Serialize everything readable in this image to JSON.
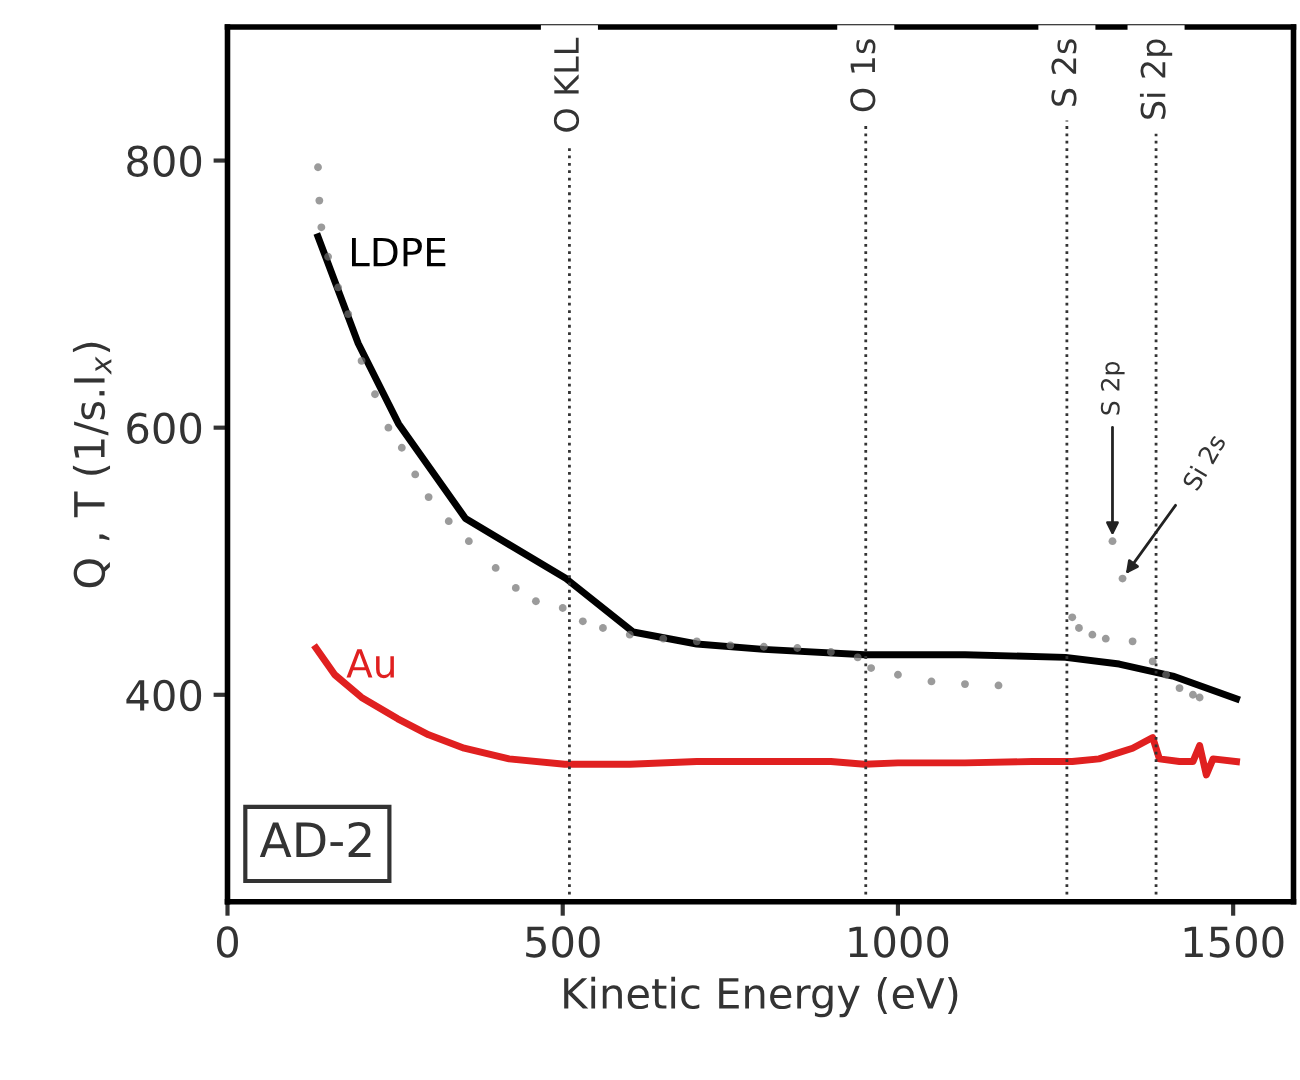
{
  "chart_data": {
    "type": "line",
    "xlabel": "Kinetic Energy (eV)",
    "ylabel": "Q , T (1/s.I$_{x}$)",
    "xlim": [
      0,
      1590
    ],
    "ylim": [
      245,
      900
    ],
    "xticks": [
      0,
      500,
      1000,
      1500
    ],
    "yticks": [
      400,
      600,
      800
    ],
    "grid": false,
    "legend": false,
    "series": [
      {
        "type": "scatter",
        "color": "#707070",
        "marker": "circle",
        "x": [
          135,
          137,
          140,
          150,
          165,
          180,
          200,
          220,
          240,
          260,
          280,
          300,
          330,
          360,
          400,
          430,
          460,
          500,
          530,
          560,
          600,
          650,
          700,
          750,
          800,
          850,
          900,
          940,
          960,
          1000,
          1050,
          1100,
          1150,
          1260,
          1270,
          1290,
          1310,
          1320,
          1335,
          1350,
          1380,
          1400,
          1420,
          1440,
          1450
        ],
        "values": [
          795,
          770,
          750,
          728,
          705,
          685,
          650,
          625,
          600,
          585,
          565,
          548,
          530,
          515,
          495,
          480,
          470,
          465,
          455,
          450,
          445,
          442,
          440,
          437,
          436,
          435,
          432,
          428,
          420,
          415,
          410,
          408,
          407,
          458,
          450,
          445,
          442,
          515,
          487,
          440,
          425,
          415,
          405,
          400,
          398
        ]
      },
      {
        "name": "LDPE",
        "color": "#000000",
        "line_style": "solid",
        "x": [
          135,
          195,
          255,
          355,
          505,
          605,
          700,
          800,
          950,
          1100,
          1250,
          1330,
          1410,
          1505
        ],
        "values": [
          743,
          663,
          603,
          532,
          487,
          447,
          438,
          434,
          430,
          430,
          428,
          423,
          414,
          397
        ]
      },
      {
        "name": "Au",
        "color": "#e02020",
        "line_style": "solid",
        "x": [
          132,
          160,
          200,
          254,
          300,
          353,
          420,
          503,
          600,
          700,
          800,
          900,
          950,
          1000,
          1100,
          1200,
          1260,
          1300,
          1350,
          1380,
          1390,
          1420,
          1440,
          1450,
          1460,
          1470,
          1505
        ],
        "values": [
          435,
          415,
          398,
          382,
          370,
          360,
          352,
          348,
          348,
          350,
          350,
          350,
          348,
          349,
          349,
          350,
          350,
          352,
          360,
          368,
          352,
          350,
          350,
          362,
          340,
          352,
          350
        ]
      }
    ],
    "ref_lines": [
      {
        "axis": "x",
        "value": 510,
        "label": "O KLL",
        "line_style": "dotted",
        "color": "#333333"
      },
      {
        "axis": "x",
        "value": 952,
        "label": "O 1s",
        "line_style": "dotted",
        "color": "#333333"
      },
      {
        "axis": "x",
        "value": 1252,
        "label": "S 2s",
        "line_style": "dotted",
        "color": "#333333"
      },
      {
        "axis": "x",
        "value": 1385,
        "label": "Si 2p",
        "line_style": "dotted",
        "color": "#333333"
      }
    ],
    "annotations": [
      {
        "text": "S 2p",
        "x": 1320,
        "y": 515
      },
      {
        "text": "Si 2s",
        "x": 1335,
        "y": 487
      },
      "AD-2"
    ]
  }
}
